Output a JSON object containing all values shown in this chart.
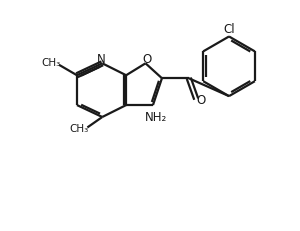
{
  "bg_color": "#ffffff",
  "line_color": "#1a1a1a",
  "line_width": 1.6,
  "figsize": [
    3.0,
    2.31
  ],
  "dpi": 100,
  "xlim": [
    0,
    10
  ],
  "ylim": [
    0,
    7.7
  ]
}
